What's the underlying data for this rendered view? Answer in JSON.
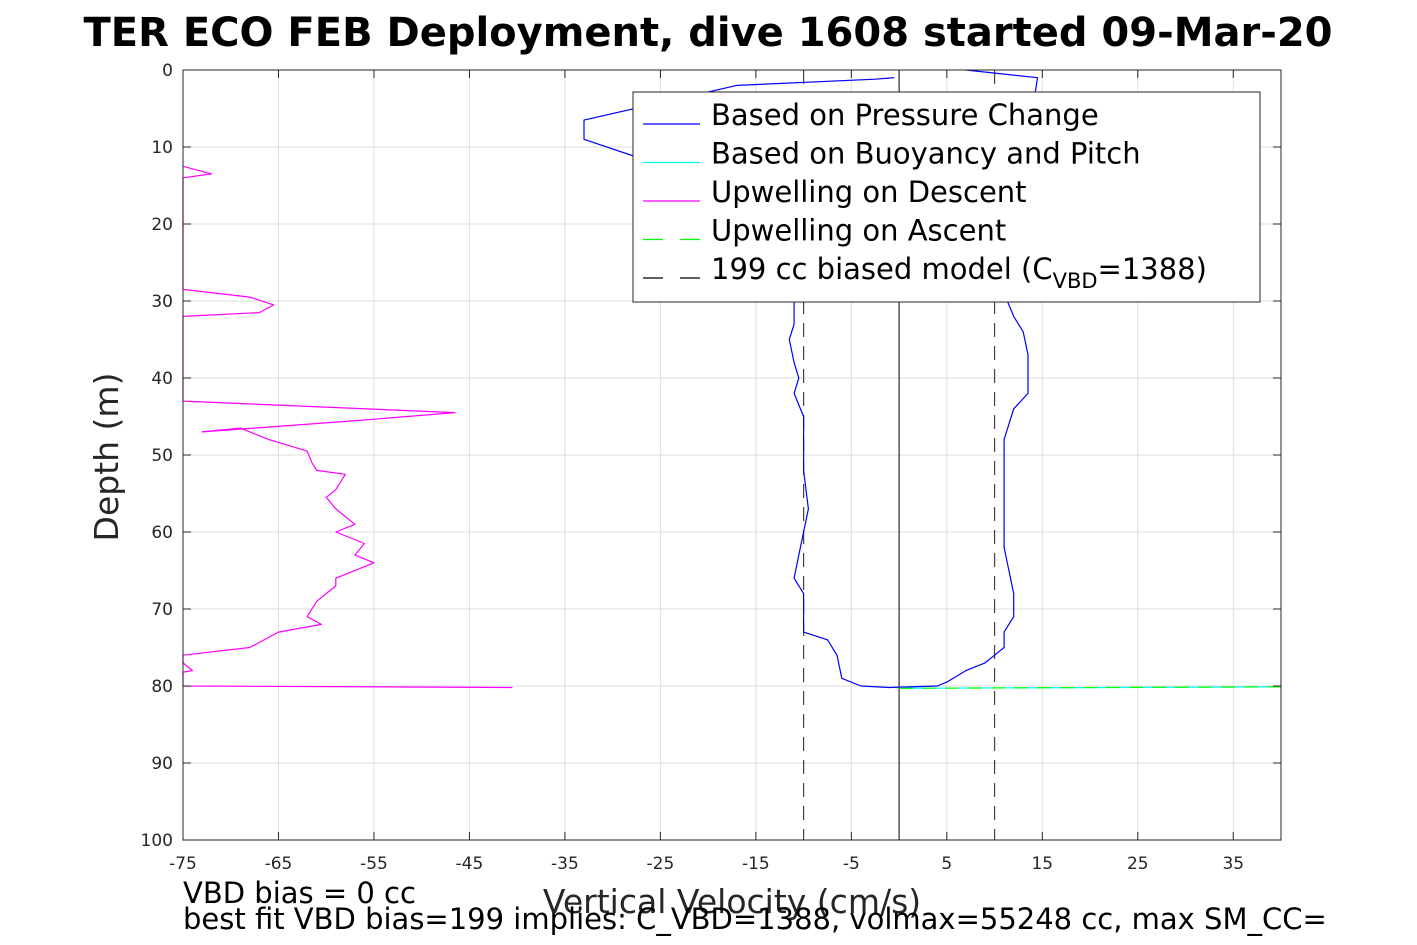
{
  "chart_data": {
    "type": "line",
    "title": "TER ECO FEB Deployment, dive 1608 started 09-Mar-20",
    "xlabel": "Vertical Velocity (cm/s)",
    "ylabel": "Depth (m)",
    "xlim": [
      -75,
      40
    ],
    "ylim": [
      0,
      100
    ],
    "y_reversed": true,
    "grid": true,
    "x_ticks": [
      -75,
      -65,
      -55,
      -45,
      -35,
      -25,
      -15,
      -5,
      5,
      15,
      25,
      35
    ],
    "y_ticks": [
      0,
      10,
      20,
      30,
      40,
      50,
      60,
      70,
      80,
      90,
      100
    ],
    "legend_position": "top-right",
    "legend": [
      {
        "label": "Based on Pressure Change",
        "color": "#0000ff",
        "dash": "solid"
      },
      {
        "label": "Based on Buoyancy and Pitch",
        "color": "#00ffff",
        "dash": "solid"
      },
      {
        "label": "Upwelling on Descent",
        "color": "#ff00ff",
        "dash": "solid"
      },
      {
        "label": "Upwelling on Ascent",
        "color": "#00ff00",
        "dash": "dashed"
      },
      {
        "label_main": "199 cc biased model (C",
        "label_sub": "VBD",
        "label_end": "=1388)",
        "color": "#000000",
        "dash": "dashed"
      }
    ],
    "series": [
      {
        "name": "Based on Pressure Change",
        "color": "#0000ff",
        "points": [
          [
            -0.5,
            1
          ],
          [
            -2.5,
            1.2
          ],
          [
            -17,
            2
          ],
          [
            -33,
            6.5
          ],
          [
            -33,
            9
          ],
          [
            -27,
            11.5
          ],
          [
            -20,
            13
          ],
          [
            -12,
            18
          ],
          [
            -11,
            24
          ],
          [
            -11,
            30
          ],
          [
            -11,
            33
          ],
          [
            -11.5,
            35
          ],
          [
            -11,
            38
          ],
          [
            -10.5,
            40
          ],
          [
            -11,
            42
          ],
          [
            -10,
            45
          ],
          [
            -10,
            48
          ],
          [
            -10,
            52
          ],
          [
            -9.5,
            57
          ],
          [
            -10,
            60
          ],
          [
            -10.5,
            63
          ],
          [
            -11,
            66
          ],
          [
            -10,
            68
          ],
          [
            -10,
            73
          ],
          [
            -7.5,
            74
          ],
          [
            -6.5,
            76
          ],
          [
            -6,
            79
          ],
          [
            -4,
            80
          ],
          [
            -1,
            80.2
          ],
          [
            4,
            80
          ],
          [
            5,
            79.5
          ],
          [
            7,
            78
          ],
          [
            9,
            77
          ],
          [
            10,
            76
          ],
          [
            11,
            75
          ],
          [
            11,
            73
          ],
          [
            12,
            71
          ],
          [
            12,
            68
          ],
          [
            11.5,
            65
          ],
          [
            11,
            62
          ],
          [
            11,
            56
          ],
          [
            11,
            52
          ],
          [
            11,
            48
          ],
          [
            12,
            44
          ],
          [
            13.5,
            42
          ],
          [
            13.5,
            37
          ],
          [
            13,
            34
          ],
          [
            12,
            32
          ],
          [
            11,
            29
          ],
          [
            11,
            25
          ],
          [
            12,
            20
          ],
          [
            13,
            15
          ],
          [
            13.5,
            10
          ],
          [
            14,
            5
          ],
          [
            14.5,
            1
          ],
          [
            7,
            0
          ]
        ]
      },
      {
        "name": "Based on Buoyancy and Pitch",
        "color": "#00ffff",
        "points": [
          [
            0,
            80.3
          ],
          [
            40,
            80.1
          ]
        ]
      },
      {
        "name": "Upwelling on Descent",
        "color": "#ff00ff",
        "points": [
          [
            -75,
            12.5
          ],
          [
            -72,
            13.5
          ],
          [
            -75,
            14
          ],
          [
            -75,
            28.5
          ],
          [
            -68,
            29.5
          ],
          [
            -65.5,
            30.5
          ],
          [
            -67,
            31.5
          ],
          [
            -75,
            32
          ],
          [
            -75,
            43
          ],
          [
            -46.5,
            44.5
          ],
          [
            -56.5,
            45.5
          ],
          [
            -73,
            47
          ],
          [
            -69,
            46.5
          ],
          [
            -66,
            48
          ],
          [
            -62,
            49.5
          ],
          [
            -61.5,
            51
          ],
          [
            -61,
            52
          ],
          [
            -58,
            52.5
          ],
          [
            -59,
            54.5
          ],
          [
            -60,
            55.5
          ],
          [
            -59,
            57
          ],
          [
            -57,
            59
          ],
          [
            -59,
            60
          ],
          [
            -56,
            61.5
          ],
          [
            -57,
            63
          ],
          [
            -55,
            64
          ],
          [
            -59,
            66
          ],
          [
            -59,
            67
          ],
          [
            -61,
            69
          ],
          [
            -62,
            71
          ],
          [
            -60.5,
            72
          ],
          [
            -65,
            73
          ],
          [
            -68,
            75
          ],
          [
            -75,
            76
          ],
          [
            -75,
            77
          ],
          [
            -74,
            78
          ],
          [
            -75,
            78.2
          ],
          [
            -75,
            80
          ],
          [
            -40.5,
            80.2
          ]
        ]
      },
      {
        "name": "Upwelling on Ascent",
        "color": "#00ff00",
        "dash": "dashed",
        "points": [
          [
            0,
            80.3
          ],
          [
            40,
            80.1
          ]
        ]
      },
      {
        "name": "199 cc biased model",
        "color": "#000000",
        "dash": "dashed",
        "lines_x": [
          -10,
          10
        ]
      }
    ],
    "zero_line": {
      "x": 0,
      "color": "#000000"
    },
    "footer": [
      "VBD bias = 0 cc",
      "best fit VBD bias=199 implies: C_VBD=1388, volmax=55248 cc, max SM_CC="
    ]
  }
}
